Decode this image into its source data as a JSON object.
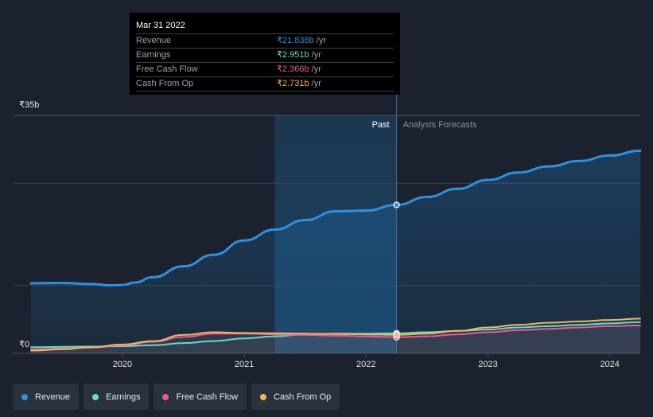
{
  "tooltip": {
    "date": "Mar 31 2022",
    "rows": [
      {
        "label": "Revenue",
        "value": "₹21.838b",
        "unit": "/yr",
        "color": "#2f8fe0"
      },
      {
        "label": "Earnings",
        "value": "₹2.951b",
        "unit": "/yr",
        "color": "#5de0c6"
      },
      {
        "label": "Free Cash Flow",
        "value": "₹2.366b",
        "unit": "/yr",
        "color": "#e85a9b"
      },
      {
        "label": "Cash From Op",
        "value": "₹2.731b",
        "unit": "/yr",
        "color": "#f5b35c"
      }
    ]
  },
  "chart_data": {
    "type": "line",
    "title": "",
    "xlabel": "",
    "ylabel": "",
    "y_tick_labels": [
      "₹35b",
      "₹0"
    ],
    "y_ticks": [
      35,
      0
    ],
    "ylim": [
      0,
      35
    ],
    "xlim": [
      2019.1,
      2024.25
    ],
    "x_tick_labels": [
      "2020",
      "2021",
      "2022",
      "2023",
      "2024"
    ],
    "x_ticks": [
      2020,
      2021,
      2022,
      2023,
      2024
    ],
    "past_label": "Past",
    "forecast_label": "Analysts Forecasts",
    "divider_x": 2022.25,
    "highlight_start_x": 2021.25,
    "series": [
      {
        "name": "Revenue",
        "color": "#2f8fe0",
        "x": [
          2019.25,
          2019.5,
          2019.75,
          2019.9,
          2020.0,
          2020.1,
          2020.25,
          2020.5,
          2020.75,
          2021.0,
          2021.25,
          2021.5,
          2021.75,
          2022.0,
          2022.25,
          2022.5,
          2022.75,
          2023.0,
          2023.25,
          2023.5,
          2023.75,
          2024.0,
          2024.25
        ],
        "values": [
          10.3,
          10.35,
          10.2,
          10.0,
          10.05,
          10.4,
          11.2,
          12.8,
          14.5,
          16.6,
          18.2,
          19.6,
          20.9,
          21.0,
          21.838,
          23.0,
          24.2,
          25.5,
          26.6,
          27.5,
          28.3,
          29.1,
          29.8
        ]
      },
      {
        "name": "Earnings",
        "color": "#5de0c6",
        "x": [
          2019.25,
          2019.5,
          2019.75,
          2020.0,
          2020.25,
          2020.5,
          2020.75,
          2021.0,
          2021.25,
          2021.5,
          2021.75,
          2022.0,
          2022.25,
          2022.5,
          2022.75,
          2023.0,
          2023.25,
          2023.5,
          2023.75,
          2024.0,
          2024.25
        ],
        "values": [
          0.9,
          0.95,
          1.0,
          1.05,
          1.2,
          1.5,
          1.8,
          2.2,
          2.5,
          2.8,
          2.9,
          2.9,
          2.951,
          3.1,
          3.3,
          3.5,
          3.8,
          4.0,
          4.2,
          4.4,
          4.6
        ]
      },
      {
        "name": "Free Cash Flow",
        "color": "#e85a9b",
        "x": [
          2019.25,
          2019.5,
          2019.75,
          2020.0,
          2020.25,
          2020.5,
          2020.75,
          2021.0,
          2021.25,
          2021.5,
          2021.75,
          2022.0,
          2022.25,
          2022.5,
          2022.75,
          2023.0,
          2023.25,
          2023.5,
          2023.75,
          2024.0,
          2024.25
        ],
        "values": [
          0.6,
          0.7,
          0.85,
          1.2,
          1.7,
          2.4,
          2.9,
          2.9,
          2.8,
          2.7,
          2.6,
          2.5,
          2.366,
          2.5,
          2.8,
          3.1,
          3.4,
          3.6,
          3.8,
          4.0,
          4.1
        ]
      },
      {
        "name": "Cash From Op",
        "color": "#f5b35c",
        "x": [
          2019.25,
          2019.5,
          2019.75,
          2020.0,
          2020.25,
          2020.5,
          2020.75,
          2021.0,
          2021.25,
          2021.5,
          2021.75,
          2022.0,
          2022.25,
          2022.5,
          2022.75,
          2023.0,
          2023.25,
          2023.5,
          2023.75,
          2024.0,
          2024.25
        ],
        "values": [
          0.4,
          0.6,
          0.9,
          1.3,
          1.8,
          2.7,
          3.1,
          3.0,
          2.95,
          2.9,
          2.85,
          2.8,
          2.731,
          2.9,
          3.3,
          3.8,
          4.2,
          4.5,
          4.7,
          4.9,
          5.1
        ]
      }
    ]
  },
  "legend": [
    {
      "label": "Revenue",
      "color": "#2f8fe0"
    },
    {
      "label": "Earnings",
      "color": "#5de0c6"
    },
    {
      "label": "Free Cash Flow",
      "color": "#e85a9b"
    },
    {
      "label": "Cash From Op",
      "color": "#f5b35c"
    }
  ]
}
